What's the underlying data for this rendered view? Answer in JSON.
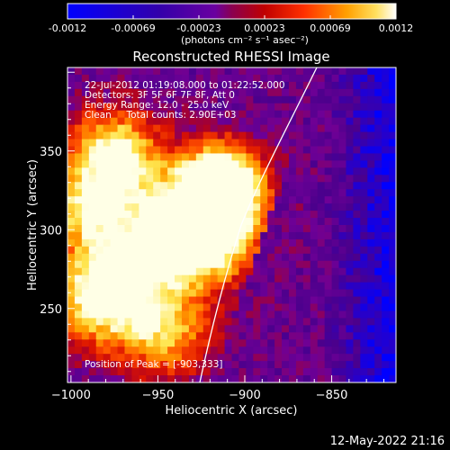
{
  "colorbar": {
    "ticks": [
      "-0.0012",
      "-0.00069",
      "-0.00023",
      "0.00023",
      "0.00069",
      "0.0012"
    ],
    "units": "(photons cm⁻² s⁻¹ asec⁻²)",
    "colors": [
      "#0000ff",
      "#4b0082",
      "#7b00b0",
      "#b00000",
      "#ff4000",
      "#ffa000",
      "#ffffff"
    ]
  },
  "image": {
    "title": "Reconstructed RHESSI Image",
    "annotation_lines": [
      "22-Jul-2012 01:19:08.000 to 01:22:52.000",
      "Detectors: 3F 5F 6F 7F 8F, Att 0",
      "Energy Range: 12.0 - 25.0 keV",
      "Clean     Total counts: 2.90E+03"
    ],
    "peak_label": "Position of Peak = [-903,333]",
    "xlabel": "Heliocentric X (arcsec)",
    "ylabel": "Heliocentric Y (arcsec)",
    "xlim": [
      -1002,
      -813
    ],
    "ylim": [
      203,
      403
    ],
    "xticks": [
      -1000,
      -950,
      -900,
      -850
    ],
    "yticks": [
      250,
      300,
      350
    ]
  },
  "footer": {
    "timestamp": "12-May-2022 21:16"
  }
}
